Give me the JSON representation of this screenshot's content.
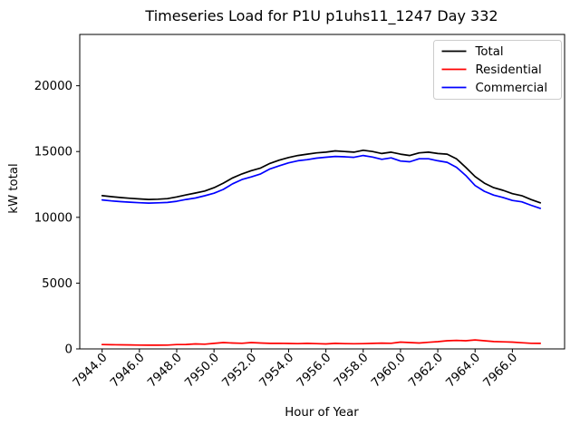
{
  "chart_data": {
    "type": "line",
    "title": "Timeseries Load for P1U p1uhs11_1247  Day 332",
    "xlabel": "Hour of Year",
    "ylabel": "kW total",
    "xlim": [
      7942.8,
      7968.8
    ],
    "ylim": [
      0,
      23900
    ],
    "grid": false,
    "legend_position": "upper right",
    "x_ticks": [
      7944,
      7946,
      7948,
      7950,
      7952,
      7954,
      7956,
      7958,
      7960,
      7962,
      7964,
      7966
    ],
    "x_tick_labels": [
      "7944.0",
      "7946.0",
      "7948.0",
      "7950.0",
      "7952.0",
      "7954.0",
      "7956.0",
      "7958.0",
      "7960.0",
      "7962.0",
      "7964.0",
      "7966.0"
    ],
    "y_ticks": [
      0,
      5000,
      10000,
      15000,
      20000
    ],
    "y_tick_labels": [
      "0",
      "5000",
      "10000",
      "15000",
      "20000"
    ],
    "x_start": 7944.0,
    "x_step": 0.5,
    "series": [
      {
        "name": "Total",
        "color": "#000000",
        "values": [
          11650,
          11570,
          11500,
          11450,
          11400,
          11360,
          11380,
          11420,
          11550,
          11700,
          11850,
          12000,
          12250,
          12600,
          13000,
          13300,
          13550,
          13750,
          14100,
          14350,
          14550,
          14700,
          14800,
          14900,
          14950,
          15050,
          15000,
          14950,
          15100,
          15000,
          14850,
          14950,
          14800,
          14700,
          14900,
          14950,
          14850,
          14800,
          14450,
          13800,
          13100,
          12600,
          12250,
          12050,
          11800,
          11650,
          11350,
          11100
        ]
      },
      {
        "name": "Residential",
        "color": "#ff0000",
        "values": [
          330,
          320,
          310,
          300,
          290,
          280,
          280,
          290,
          330,
          340,
          380,
          360,
          420,
          480,
          450,
          430,
          480,
          450,
          420,
          430,
          410,
          400,
          420,
          400,
          380,
          420,
          400,
          390,
          400,
          420,
          440,
          430,
          520,
          480,
          450,
          500,
          550,
          620,
          650,
          620,
          680,
          620,
          560,
          540,
          520,
          470,
          430,
          420
        ]
      },
      {
        "name": "Commercial",
        "color": "#0000ff",
        "values": [
          11320,
          11250,
          11190,
          11150,
          11110,
          11080,
          11100,
          11130,
          11220,
          11360,
          11470,
          11640,
          11830,
          12120,
          12550,
          12870,
          13070,
          13300,
          13680,
          13920,
          14140,
          14300,
          14380,
          14500,
          14570,
          14630,
          14600,
          14560,
          14700,
          14580,
          14410,
          14520,
          14280,
          14220,
          14450,
          14450,
          14300,
          14180,
          13800,
          13180,
          12420,
          11980,
          11690,
          11510,
          11280,
          11180,
          10920,
          10680
        ]
      }
    ]
  }
}
